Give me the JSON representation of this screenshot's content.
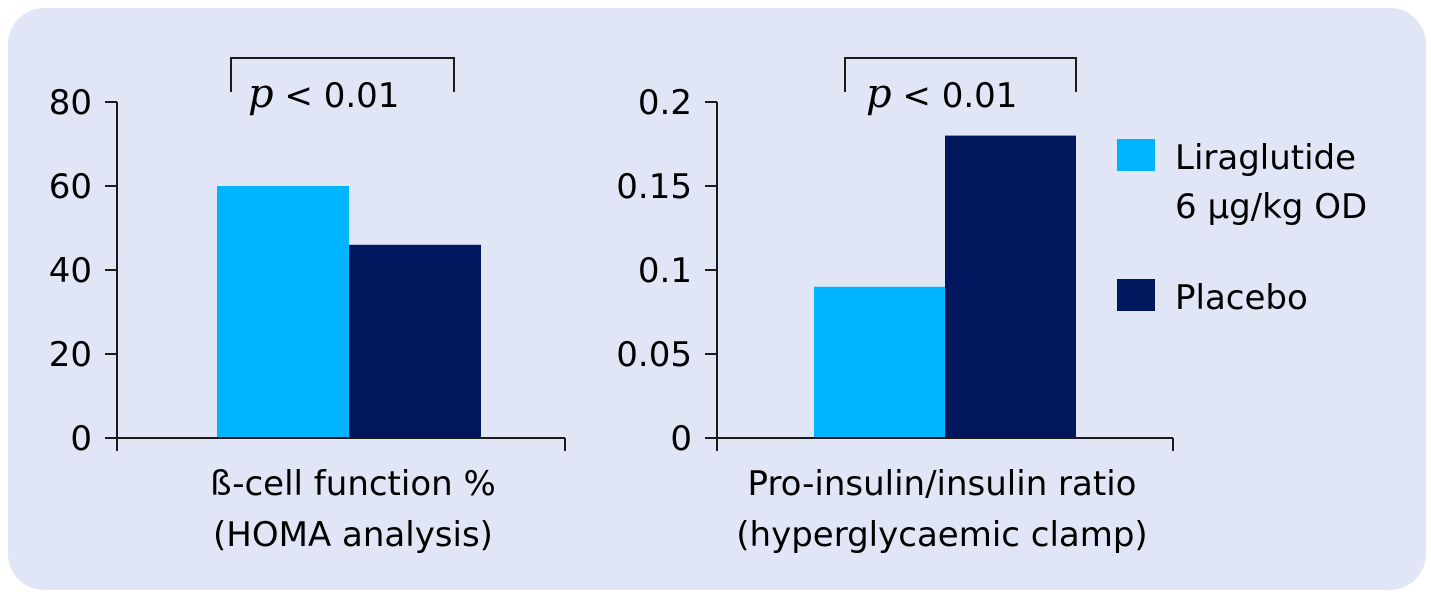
{
  "colors": {
    "liraglutide": "#00b4ff",
    "placebo": "#00175e",
    "background_panel": "#e1e6f6"
  },
  "legend": [
    {
      "lines": [
        "Liraglutide",
        "6 µg/kg OD"
      ],
      "color_key": "liraglutide"
    },
    {
      "lines": [
        "Placebo"
      ],
      "color_key": "placebo"
    }
  ],
  "chart_data": [
    {
      "type": "bar",
      "categories": [
        "Liraglutide 6 µg/kg OD",
        "Placebo"
      ],
      "values": [
        60,
        46
      ],
      "xlabel": [
        "ß-cell function %",
        "(HOMA analysis)"
      ],
      "ylabel": "",
      "ylim": [
        0,
        80
      ],
      "yticks": [
        0,
        20,
        40,
        60,
        80
      ],
      "ytick_labels": [
        "0",
        "20",
        "40",
        "60",
        "80"
      ],
      "significance": {
        "p": "p",
        "text": " < 0.01"
      },
      "grid": false
    },
    {
      "type": "bar",
      "categories": [
        "Liraglutide 6 µg/kg OD",
        "Placebo"
      ],
      "values": [
        0.09,
        0.18
      ],
      "xlabel": [
        "Pro-insulin/insulin ratio",
        "(hyperglycaemic clamp)"
      ],
      "ylabel": "",
      "ylim": [
        0,
        0.2
      ],
      "yticks": [
        0,
        0.05,
        0.1,
        0.15,
        0.2
      ],
      "ytick_labels": [
        "0",
        "0.05",
        "0.1",
        "0.15",
        "0.2"
      ],
      "significance": {
        "p": "p",
        "text": " < 0.01"
      },
      "grid": false
    }
  ]
}
